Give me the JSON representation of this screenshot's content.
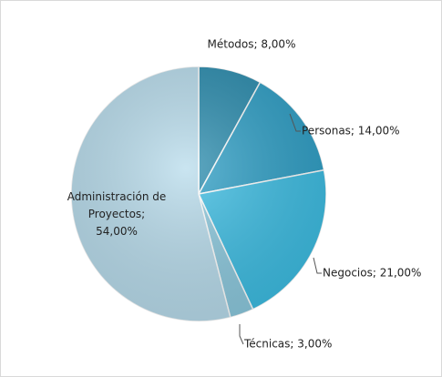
{
  "chart_data": {
    "type": "pie",
    "values": [
      8,
      14,
      21,
      3,
      54
    ],
    "value_labels": [
      "Métodos; 8,00%",
      "Personas; 14,00%",
      "Negocios; 21,00%",
      "Técnicas; 3,00%",
      "Administración de Proyectos; 54,00%"
    ],
    "colors": [
      "#2a8cae",
      "#2e9fc6",
      "#3cbde3",
      "#8cc9de",
      "#b8dcec"
    ]
  }
}
